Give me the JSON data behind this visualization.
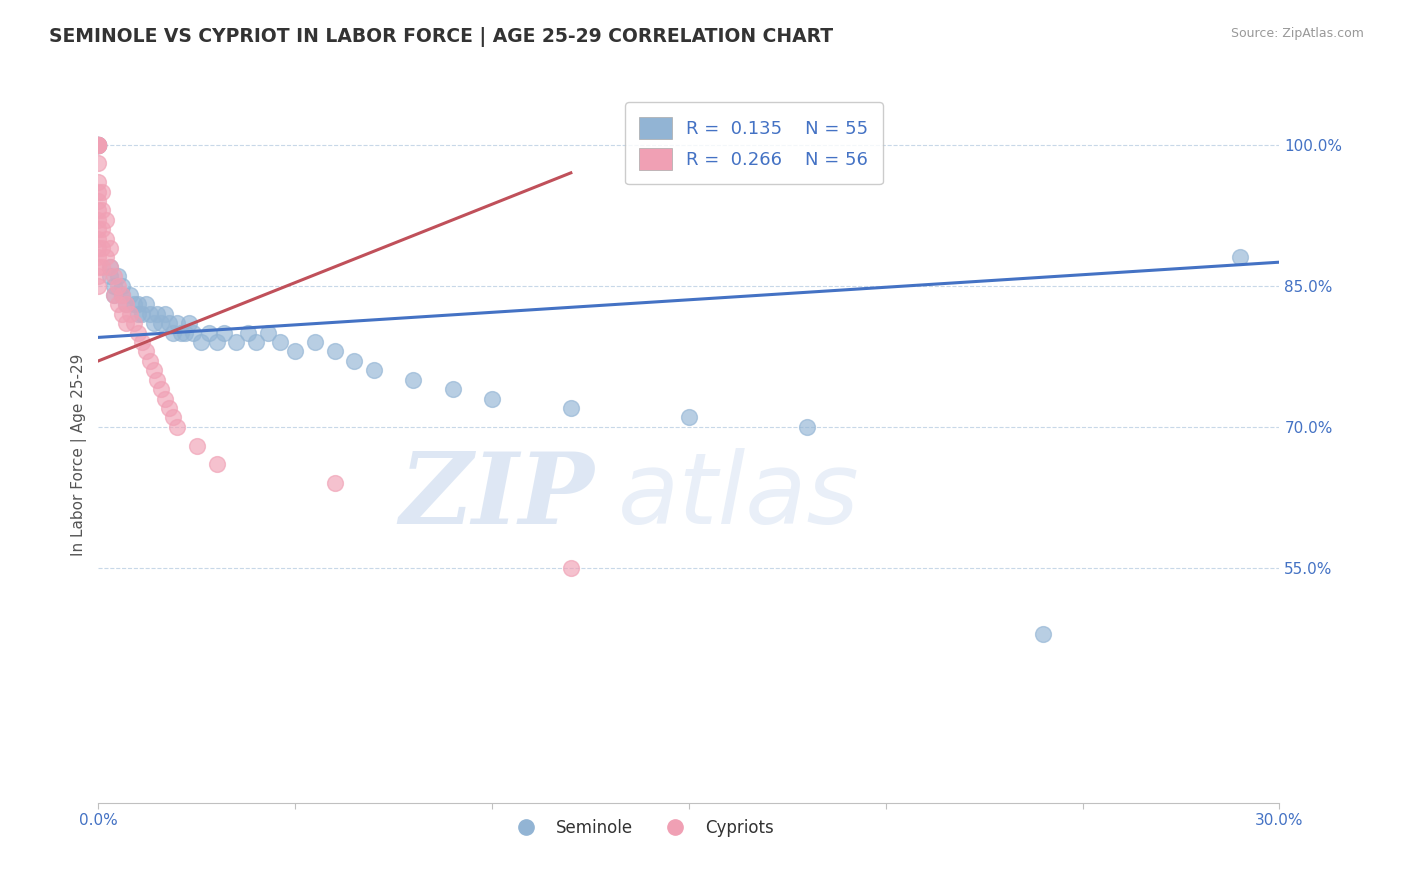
{
  "title": "SEMINOLE VS CYPRIOT IN LABOR FORCE | AGE 25-29 CORRELATION CHART",
  "source_text": "Source: ZipAtlas.com",
  "ylabel": "In Labor Force | Age 25-29",
  "xlim": [
    0.0,
    0.3
  ],
  "ylim": [
    0.3,
    1.04
  ],
  "seminole_color": "#92b4d4",
  "cypriot_color": "#f0a0b4",
  "seminole_R": 0.135,
  "seminole_N": 55,
  "cypriot_R": 0.266,
  "cypriot_N": 56,
  "seminole_line_color": "#4472c4",
  "cypriot_line_color": "#c0505a",
  "watermark_zip": "ZIP",
  "watermark_atlas": "atlas",
  "seminole_x": [
    0.0,
    0.0,
    0.0,
    0.0,
    0.0,
    0.0,
    0.0,
    0.003,
    0.003,
    0.004,
    0.004,
    0.005,
    0.006,
    0.006,
    0.007,
    0.008,
    0.009,
    0.01,
    0.01,
    0.011,
    0.012,
    0.013,
    0.014,
    0.015,
    0.016,
    0.017,
    0.018,
    0.019,
    0.02,
    0.021,
    0.022,
    0.023,
    0.024,
    0.026,
    0.028,
    0.03,
    0.032,
    0.035,
    0.038,
    0.04,
    0.043,
    0.046,
    0.05,
    0.055,
    0.06,
    0.065,
    0.07,
    0.08,
    0.09,
    0.1,
    0.12,
    0.15,
    0.18,
    0.24,
    0.29
  ],
  "seminole_y": [
    1.0,
    1.0,
    1.0,
    1.0,
    1.0,
    1.0,
    1.0,
    0.87,
    0.86,
    0.84,
    0.85,
    0.86,
    0.84,
    0.85,
    0.83,
    0.84,
    0.83,
    0.82,
    0.83,
    0.82,
    0.83,
    0.82,
    0.81,
    0.82,
    0.81,
    0.82,
    0.81,
    0.8,
    0.81,
    0.8,
    0.8,
    0.81,
    0.8,
    0.79,
    0.8,
    0.79,
    0.8,
    0.79,
    0.8,
    0.79,
    0.8,
    0.79,
    0.78,
    0.79,
    0.78,
    0.77,
    0.76,
    0.75,
    0.74,
    0.73,
    0.72,
    0.71,
    0.7,
    0.48,
    0.88
  ],
  "cypriot_x": [
    0.0,
    0.0,
    0.0,
    0.0,
    0.0,
    0.0,
    0.0,
    0.0,
    0.0,
    0.0,
    0.0,
    0.0,
    0.0,
    0.0,
    0.0,
    0.0,
    0.0,
    0.0,
    0.0,
    0.0,
    0.0,
    0.001,
    0.001,
    0.001,
    0.001,
    0.001,
    0.002,
    0.002,
    0.002,
    0.003,
    0.003,
    0.004,
    0.004,
    0.005,
    0.005,
    0.006,
    0.006,
    0.007,
    0.007,
    0.008,
    0.009,
    0.01,
    0.011,
    0.012,
    0.013,
    0.014,
    0.015,
    0.016,
    0.017,
    0.018,
    0.019,
    0.02,
    0.025,
    0.03,
    0.06,
    0.12
  ],
  "cypriot_y": [
    1.0,
    1.0,
    1.0,
    1.0,
    1.0,
    1.0,
    1.0,
    1.0,
    0.98,
    0.96,
    0.95,
    0.94,
    0.93,
    0.92,
    0.91,
    0.9,
    0.89,
    0.88,
    0.87,
    0.86,
    0.85,
    0.95,
    0.93,
    0.91,
    0.89,
    0.87,
    0.92,
    0.9,
    0.88,
    0.89,
    0.87,
    0.86,
    0.84,
    0.85,
    0.83,
    0.84,
    0.82,
    0.83,
    0.81,
    0.82,
    0.81,
    0.8,
    0.79,
    0.78,
    0.77,
    0.76,
    0.75,
    0.74,
    0.73,
    0.72,
    0.71,
    0.7,
    0.68,
    0.66,
    0.64,
    0.55
  ]
}
